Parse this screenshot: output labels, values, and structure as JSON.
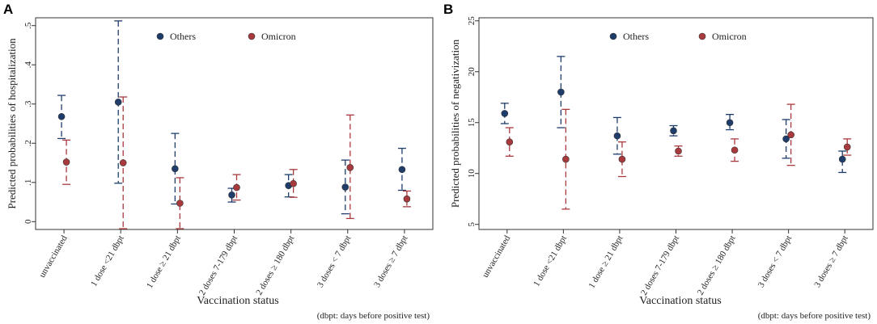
{
  "colors": {
    "others": "#1f3d6b",
    "omicron": "#a83a3e",
    "axis": "#333333",
    "text": "#222222"
  },
  "chart_data": [
    {
      "type": "scatter",
      "panel": "A",
      "ylabel": "Predicted probabilities of hospitalization",
      "xlabel": "Vaccination status",
      "note": "(dbpt: days before positive test)",
      "ylim": [
        -0.02,
        0.52
      ],
      "yticks": [
        0,
        0.1,
        0.2,
        0.3,
        0.4,
        0.5
      ],
      "ytick_labels": [
        "0",
        ".1",
        ".2",
        ".3",
        ".4",
        ".5"
      ],
      "categories": [
        "unvaccinated",
        "1 dose <21 dbpt",
        "1 dose ≥ 21 dbpt",
        "2 doses 7-179 dbpt",
        "2 doses ≥ 180 dbpt",
        "3 doses < 7 dbpt",
        "3 doses ≥ 7 dbpt"
      ],
      "legend": [
        "Others",
        "Omicron"
      ],
      "legend_position": "top-center",
      "series": [
        {
          "name": "Others",
          "values": [
            0.268,
            0.305,
            0.135,
            0.068,
            0.092,
            0.088,
            0.133
          ],
          "ci_low": [
            0.212,
            0.098,
            0.045,
            0.05,
            0.063,
            0.02,
            0.08
          ],
          "ci_high": [
            0.322,
            0.512,
            0.225,
            0.085,
            0.12,
            0.157,
            0.187
          ]
        },
        {
          "name": "Omicron",
          "values": [
            0.152,
            0.15,
            0.047,
            0.087,
            0.097,
            0.138,
            0.058
          ],
          "ci_low": [
            0.095,
            -0.018,
            -0.018,
            0.055,
            0.062,
            0.008,
            0.038
          ],
          "ci_high": [
            0.208,
            0.318,
            0.112,
            0.12,
            0.133,
            0.272,
            0.078
          ]
        }
      ]
    },
    {
      "type": "scatter",
      "panel": "B",
      "ylabel": "Predicted probabilities of negativization",
      "xlabel": "Vaccination status",
      "note": "(dbpt: days before positive test)",
      "ylim": [
        4.5,
        25.3
      ],
      "yticks": [
        5,
        10,
        15,
        20,
        25
      ],
      "ytick_labels": [
        "5",
        "10",
        "15",
        "20",
        "25"
      ],
      "categories": [
        "unvaccinated",
        "1 dose <21 dbpt",
        "1 dose ≥ 21 dbpt",
        "2 doses 7-179 dbpt",
        "2 doses ≥ 180 dbpt",
        "3 doses < 7 dbpt",
        "3 doses ≥ 7 dbpt"
      ],
      "legend": [
        "Others",
        "Omicron"
      ],
      "legend_position": "top-center",
      "series": [
        {
          "name": "Others",
          "values": [
            15.9,
            18.0,
            13.7,
            14.2,
            15.0,
            13.4,
            11.4
          ],
          "ci_low": [
            14.9,
            14.5,
            11.9,
            13.7,
            14.3,
            11.5,
            10.1
          ],
          "ci_high": [
            16.9,
            21.5,
            15.5,
            14.7,
            15.8,
            15.3,
            12.2
          ]
        },
        {
          "name": "Omicron",
          "values": [
            13.1,
            11.4,
            11.4,
            12.2,
            12.3,
            13.8,
            12.6
          ],
          "ci_low": [
            11.7,
            6.5,
            9.7,
            11.7,
            11.2,
            10.8,
            11.8
          ],
          "ci_high": [
            14.5,
            16.3,
            13.1,
            12.7,
            13.4,
            16.8,
            13.4
          ]
        }
      ]
    }
  ]
}
